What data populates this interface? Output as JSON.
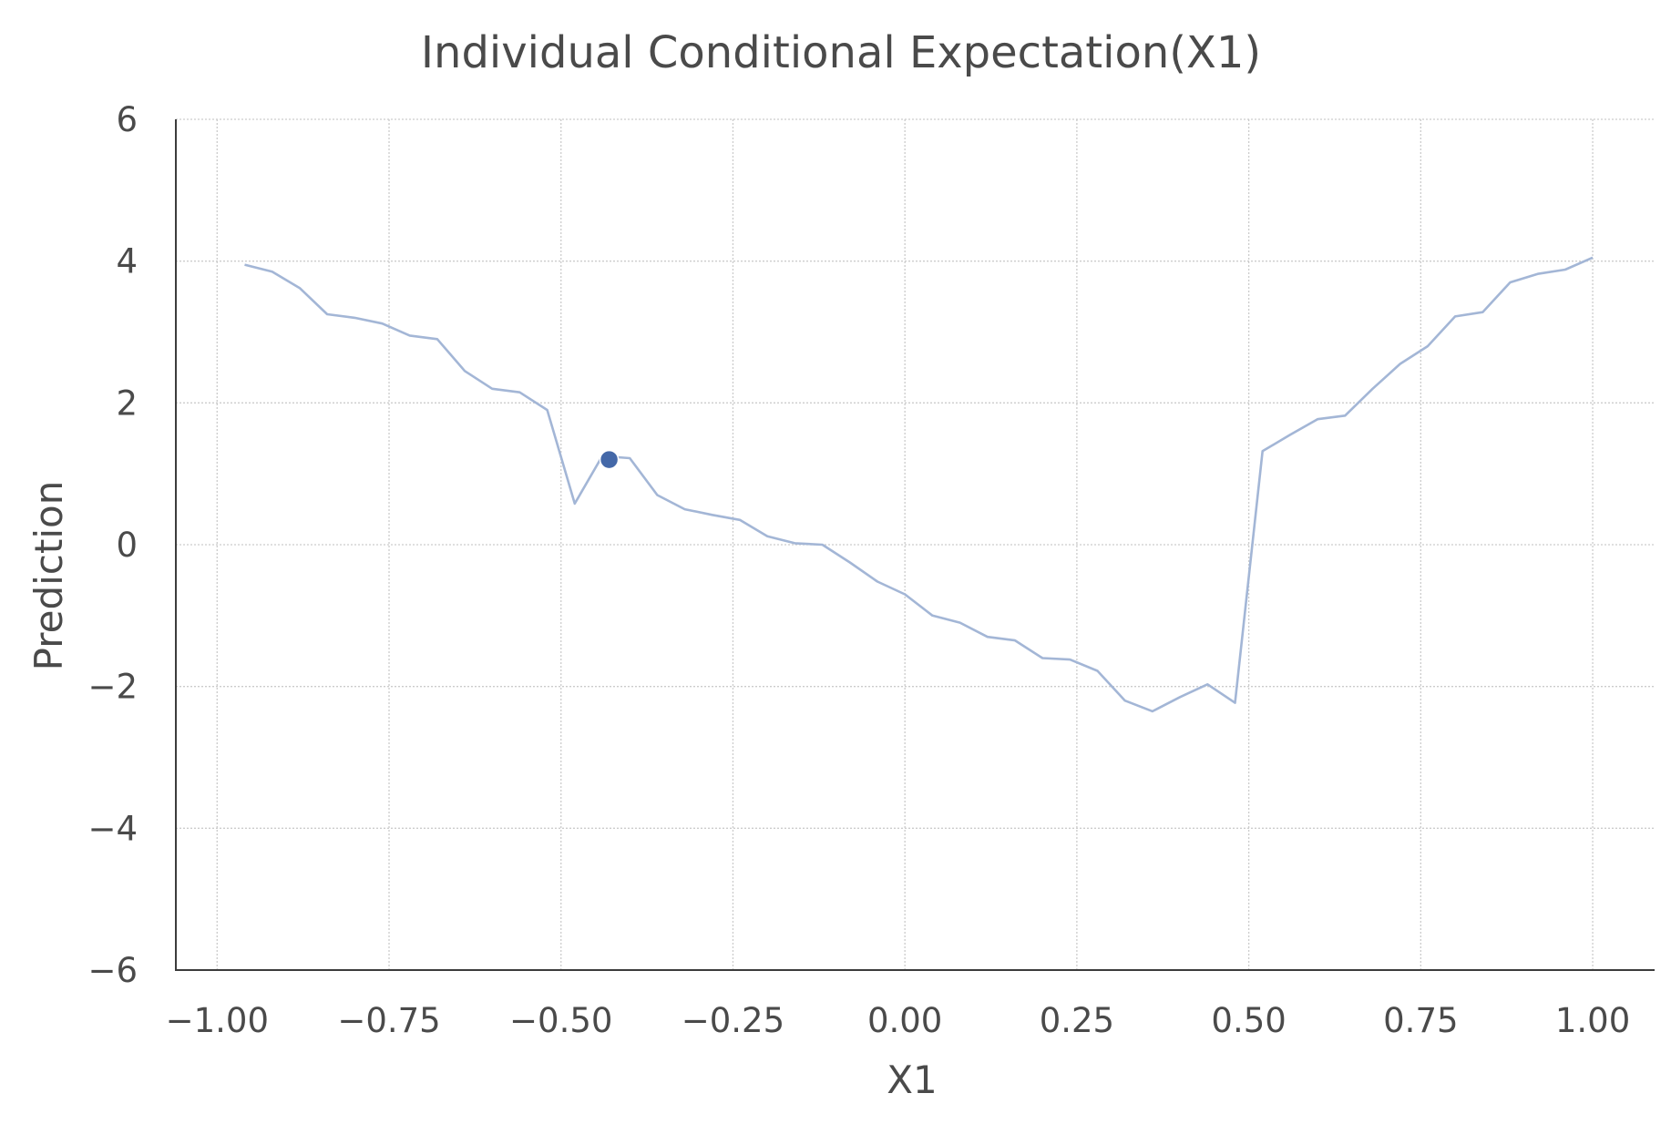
{
  "chart_data": {
    "type": "line",
    "title": "Individual Conditional Expectation(X1)",
    "xlabel": "X1",
    "ylabel": "Prediction",
    "xlim": [
      -1.06,
      1.09
    ],
    "ylim": [
      -6,
      6
    ],
    "xticks": [
      -1.0,
      -0.75,
      -0.5,
      -0.25,
      0.0,
      0.25,
      0.5,
      0.75,
      1.0
    ],
    "xtick_labels": [
      "−1.00",
      "−0.75",
      "−0.50",
      "−0.25",
      "0.00",
      "0.25",
      "0.50",
      "0.75",
      "1.00"
    ],
    "yticks": [
      -6,
      -4,
      -2,
      0,
      2,
      4,
      6
    ],
    "ytick_labels": [
      "−6",
      "−4",
      "−2",
      "0",
      "2",
      "4",
      "6"
    ],
    "grid": true,
    "line_color": "#a3b6d6",
    "marker_color": "#4468a8",
    "series": [
      {
        "x": [
          -0.96,
          -0.92,
          -0.88,
          -0.84,
          -0.8,
          -0.76,
          -0.72,
          -0.68,
          -0.64,
          -0.6,
          -0.56,
          -0.52,
          -0.48,
          -0.44,
          -0.4,
          -0.36,
          -0.32,
          -0.28,
          -0.24,
          -0.2,
          -0.16,
          -0.12,
          -0.08,
          -0.04,
          0.0,
          0.04,
          0.08,
          0.12,
          0.16,
          0.2,
          0.24,
          0.28,
          0.32,
          0.36,
          0.4,
          0.44,
          0.48,
          0.52,
          0.56,
          0.6,
          0.64,
          0.68,
          0.72,
          0.76,
          0.8,
          0.84,
          0.88,
          0.92,
          0.96,
          1.0
        ],
        "y": [
          3.95,
          3.85,
          3.62,
          3.25,
          3.2,
          3.12,
          2.95,
          2.9,
          2.45,
          2.2,
          2.15,
          1.9,
          0.58,
          1.25,
          1.22,
          0.7,
          0.5,
          0.42,
          0.35,
          0.12,
          0.02,
          0.0,
          -0.25,
          -0.52,
          -0.7,
          -1.0,
          -1.1,
          -1.3,
          -1.35,
          -1.6,
          -1.62,
          -1.78,
          -2.2,
          -2.35,
          -2.15,
          -1.97,
          -2.23,
          1.32,
          1.55,
          1.77,
          1.82,
          2.2,
          2.55,
          2.8,
          3.22,
          3.28,
          3.7,
          3.82,
          3.88,
          4.05
        ]
      }
    ],
    "highlight_point": {
      "x": -0.43,
      "y": 1.2
    }
  }
}
